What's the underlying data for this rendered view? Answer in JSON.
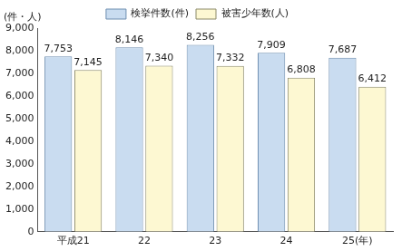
{
  "chart_data": {
    "type": "bar",
    "y_label": "(件・人)",
    "categories": [
      "平成21",
      "22",
      "23",
      "24",
      "25(年)"
    ],
    "series": [
      {
        "name": "検挙件数(件)",
        "color": "#c9dcf0",
        "values": [
          7753,
          8146,
          8256,
          7909,
          7687
        ],
        "value_labels": [
          "7,753",
          "8,146",
          "8,256",
          "7,909",
          "7,687"
        ]
      },
      {
        "name": "被害少年数(人)",
        "color": "#fdf8d2",
        "values": [
          7145,
          7340,
          7332,
          6808,
          6412
        ],
        "value_labels": [
          "7,145",
          "7,340",
          "7,332",
          "6,808",
          "6,412"
        ]
      }
    ],
    "ylim": [
      0,
      9000
    ],
    "yticks": [
      {
        "value": 0,
        "label": "0"
      },
      {
        "value": 1000,
        "label": "1,000"
      },
      {
        "value": 2000,
        "label": "2,000"
      },
      {
        "value": 3000,
        "label": "3,000"
      },
      {
        "value": 4000,
        "label": "4,000"
      },
      {
        "value": 5000,
        "label": "5,000"
      },
      {
        "value": 6000,
        "label": "6,000"
      },
      {
        "value": 7000,
        "label": "7,000"
      },
      {
        "value": 8000,
        "label": "8,000"
      },
      {
        "value": 9000,
        "label": "9,000"
      }
    ],
    "grid": false,
    "legend": "top",
    "data_labels": true
  }
}
